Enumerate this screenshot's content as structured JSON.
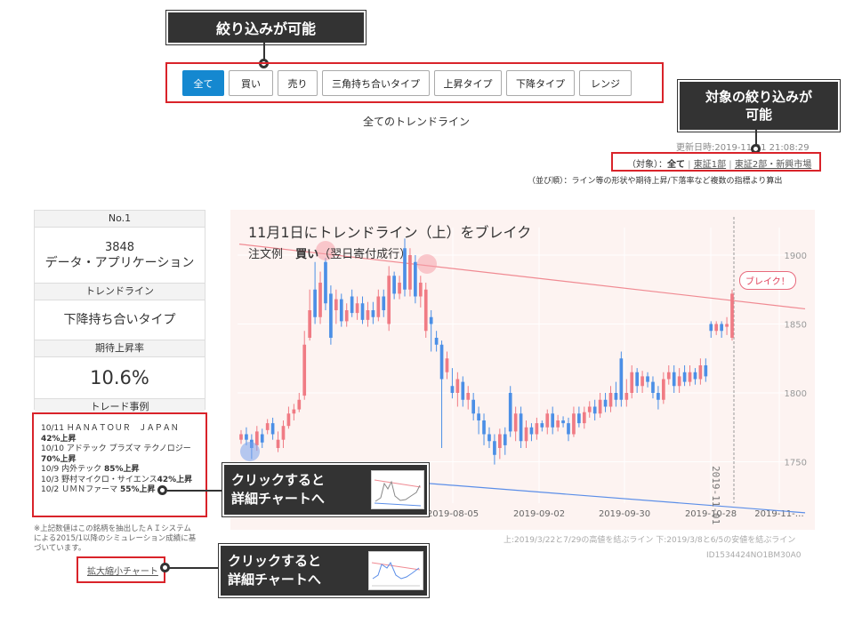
{
  "callouts": {
    "filter": "絞り込みが可能",
    "target": [
      "対象の絞り込みが",
      "可能"
    ],
    "click1": [
      "クリックすると",
      "詳細チャートへ"
    ],
    "click2": [
      "クリックすると",
      "詳細チャートへ"
    ]
  },
  "filters": [
    {
      "label": "全て",
      "active": true
    },
    {
      "label": "買い"
    },
    {
      "label": "売り"
    },
    {
      "label": "三角持ち合いタイプ"
    },
    {
      "label": "上昇タイプ"
    },
    {
      "label": "下降タイプ"
    },
    {
      "label": "レンジ"
    }
  ],
  "section_title": "全てのトレンドライン",
  "updated": "更新日時:2019-11-01 21:08:29",
  "target": {
    "prefix": "（対象）：",
    "all": "全て",
    "sep1": " | ",
    "tse1": "東証1部",
    "sep2": " | ",
    "tse2": "東証2部・新興市場"
  },
  "order_note": "（並び順）：ライン等の形状や期待上昇/下落率など複数の指標より算出",
  "sidebar": {
    "rank": "No.1",
    "code": "3848",
    "name": "データ・アプリケーション",
    "trendline_head": "トレンドライン",
    "trendline_type": "下降持ち合いタイプ",
    "expected_head": "期待上昇率",
    "expected_value": "10.6%",
    "trades_head": "トレード事例",
    "trades": [
      {
        "line": "10/11 ＨＡＮＡＴＯＵＲ　ＪＡＰＡＮ",
        "result": "42%上昇"
      },
      {
        "line": "10/10 アドテック プラズマ テクノロジー",
        "result": "70%上昇"
      },
      {
        "line": "10/9 内外テック",
        "result": "85%上昇"
      },
      {
        "line": "10/3 野村マイクロ・サイエンス",
        "result": "42%上昇"
      },
      {
        "line": "10/2 ＵＭＮファーマ",
        "result": "55%上昇"
      }
    ],
    "note": [
      "※上記数値はこの銘柄を抽出したＡＩシステム",
      "による2015/1以降のシミュレーション成績に基",
      "づいています。"
    ],
    "zoom_link": "拡大縮小チャート"
  },
  "chart_data": {
    "type": "candlestick",
    "title": "11月1日にトレンドライン（上）をブレイク",
    "order_label": "注文例",
    "order_side": "買い",
    "order_type": "（翌日寄付成行）",
    "break_label": "ブレイク！",
    "event_label": "2019-11-01",
    "x_ticks": [
      "2019-08-05",
      "2019-09-02",
      "2019-09-30",
      "2019-10-28",
      "2019-11-…"
    ],
    "y_ticks": [
      1750,
      1800,
      1850,
      1900
    ],
    "ylim": [
      1720,
      1920
    ],
    "upper_line": {
      "start": 1908,
      "end": 1861
    },
    "lower_line": {
      "start": 1745,
      "end": 1713
    },
    "candles": [
      {
        "o": 1766,
        "c": 1770,
        "h": 1773,
        "l": 1763
      },
      {
        "o": 1770,
        "c": 1766,
        "h": 1775,
        "l": 1762
      },
      {
        "o": 1766,
        "c": 1760,
        "h": 1770,
        "l": 1752
      },
      {
        "o": 1762,
        "c": 1772,
        "h": 1776,
        "l": 1758
      },
      {
        "o": 1770,
        "c": 1764,
        "h": 1774,
        "l": 1760
      },
      {
        "o": 1773,
        "c": 1778,
        "h": 1781,
        "l": 1770
      },
      {
        "o": 1778,
        "c": 1770,
        "h": 1782,
        "l": 1766
      },
      {
        "o": 1760,
        "c": 1766,
        "h": 1772,
        "l": 1757
      },
      {
        "o": 1766,
        "c": 1776,
        "h": 1780,
        "l": 1760
      },
      {
        "o": 1776,
        "c": 1785,
        "h": 1790,
        "l": 1774
      },
      {
        "o": 1785,
        "c": 1788,
        "h": 1792,
        "l": 1780
      },
      {
        "o": 1788,
        "c": 1795,
        "h": 1800,
        "l": 1786
      },
      {
        "o": 1798,
        "c": 1835,
        "h": 1845,
        "l": 1795
      },
      {
        "o": 1840,
        "c": 1860,
        "h": 1875,
        "l": 1838
      },
      {
        "o": 1875,
        "c": 1855,
        "h": 1895,
        "l": 1850
      },
      {
        "o": 1855,
        "c": 1880,
        "h": 1888,
        "l": 1850
      },
      {
        "o": 1895,
        "c": 1865,
        "h": 1898,
        "l": 1860
      },
      {
        "o": 1872,
        "c": 1840,
        "h": 1878,
        "l": 1835
      },
      {
        "o": 1860,
        "c": 1868,
        "h": 1875,
        "l": 1850
      },
      {
        "o": 1868,
        "c": 1852,
        "h": 1872,
        "l": 1848
      },
      {
        "o": 1852,
        "c": 1860,
        "h": 1865,
        "l": 1848
      },
      {
        "o": 1870,
        "c": 1858,
        "h": 1875,
        "l": 1855
      },
      {
        "o": 1858,
        "c": 1865,
        "h": 1870,
        "l": 1853
      },
      {
        "o": 1865,
        "c": 1853,
        "h": 1870,
        "l": 1850
      },
      {
        "o": 1853,
        "c": 1860,
        "h": 1866,
        "l": 1848
      },
      {
        "o": 1860,
        "c": 1855,
        "h": 1866,
        "l": 1850
      },
      {
        "o": 1855,
        "c": 1870,
        "h": 1875,
        "l": 1852
      },
      {
        "o": 1870,
        "c": 1860,
        "h": 1875,
        "l": 1855
      },
      {
        "o": 1850,
        "c": 1885,
        "h": 1892,
        "l": 1845
      },
      {
        "o": 1885,
        "c": 1872,
        "h": 1888,
        "l": 1868
      },
      {
        "o": 1872,
        "c": 1880,
        "h": 1885,
        "l": 1868
      },
      {
        "o": 1905,
        "c": 1875,
        "h": 1912,
        "l": 1870
      },
      {
        "o": 1875,
        "c": 1900,
        "h": 1905,
        "l": 1870
      },
      {
        "o": 1895,
        "c": 1870,
        "h": 1900,
        "l": 1865
      },
      {
        "o": 1870,
        "c": 1880,
        "h": 1885,
        "l": 1862
      },
      {
        "o": 1845,
        "c": 1875,
        "h": 1880,
        "l": 1840
      },
      {
        "o": 1855,
        "c": 1850,
        "h": 1860,
        "l": 1830
      },
      {
        "o": 1840,
        "c": 1835,
        "h": 1845,
        "l": 1830
      },
      {
        "o": 1835,
        "c": 1810,
        "h": 1838,
        "l": 1760
      },
      {
        "o": 1815,
        "c": 1825,
        "h": 1830,
        "l": 1810
      },
      {
        "o": 1805,
        "c": 1800,
        "h": 1818,
        "l": 1796
      },
      {
        "o": 1800,
        "c": 1810,
        "h": 1815,
        "l": 1790
      },
      {
        "o": 1808,
        "c": 1795,
        "h": 1812,
        "l": 1790
      },
      {
        "o": 1795,
        "c": 1800,
        "h": 1805,
        "l": 1788
      },
      {
        "o": 1795,
        "c": 1785,
        "h": 1800,
        "l": 1780
      },
      {
        "o": 1785,
        "c": 1780,
        "h": 1790,
        "l": 1770
      },
      {
        "o": 1780,
        "c": 1770,
        "h": 1785,
        "l": 1762
      },
      {
        "o": 1770,
        "c": 1765,
        "h": 1775,
        "l": 1760
      },
      {
        "o": 1765,
        "c": 1755,
        "h": 1770,
        "l": 1748
      },
      {
        "o": 1760,
        "c": 1770,
        "h": 1774,
        "l": 1752
      },
      {
        "o": 1770,
        "c": 1762,
        "h": 1775,
        "l": 1755
      },
      {
        "o": 1800,
        "c": 1772,
        "h": 1805,
        "l": 1768
      },
      {
        "o": 1772,
        "c": 1785,
        "h": 1790,
        "l": 1765
      },
      {
        "o": 1785,
        "c": 1765,
        "h": 1790,
        "l": 1760
      },
      {
        "o": 1765,
        "c": 1775,
        "h": 1780,
        "l": 1760
      },
      {
        "o": 1775,
        "c": 1770,
        "h": 1778,
        "l": 1765
      },
      {
        "o": 1770,
        "c": 1778,
        "h": 1782,
        "l": 1766
      },
      {
        "o": 1778,
        "c": 1775,
        "h": 1780,
        "l": 1772
      },
      {
        "o": 1775,
        "c": 1785,
        "h": 1788,
        "l": 1770
      },
      {
        "o": 1785,
        "c": 1775,
        "h": 1790,
        "l": 1770
      },
      {
        "o": 1775,
        "c": 1780,
        "h": 1784,
        "l": 1772
      },
      {
        "o": 1780,
        "c": 1778,
        "h": 1783,
        "l": 1775
      },
      {
        "o": 1778,
        "c": 1770,
        "h": 1782,
        "l": 1765
      },
      {
        "o": 1770,
        "c": 1785,
        "h": 1790,
        "l": 1768
      },
      {
        "o": 1785,
        "c": 1778,
        "h": 1790,
        "l": 1775
      },
      {
        "o": 1778,
        "c": 1786,
        "h": 1790,
        "l": 1774
      },
      {
        "o": 1786,
        "c": 1790,
        "h": 1794,
        "l": 1782
      },
      {
        "o": 1790,
        "c": 1785,
        "h": 1795,
        "l": 1780
      },
      {
        "o": 1785,
        "c": 1795,
        "h": 1800,
        "l": 1782
      },
      {
        "o": 1795,
        "c": 1790,
        "h": 1800,
        "l": 1786
      },
      {
        "o": 1790,
        "c": 1800,
        "h": 1805,
        "l": 1786
      },
      {
        "o": 1800,
        "c": 1795,
        "h": 1808,
        "l": 1790
      },
      {
        "o": 1825,
        "c": 1795,
        "h": 1830,
        "l": 1790
      },
      {
        "o": 1795,
        "c": 1800,
        "h": 1810,
        "l": 1790
      },
      {
        "o": 1800,
        "c": 1815,
        "h": 1820,
        "l": 1796
      },
      {
        "o": 1815,
        "c": 1805,
        "h": 1818,
        "l": 1800
      },
      {
        "o": 1805,
        "c": 1812,
        "h": 1816,
        "l": 1800
      },
      {
        "o": 1812,
        "c": 1808,
        "h": 1815,
        "l": 1804
      },
      {
        "o": 1808,
        "c": 1800,
        "h": 1812,
        "l": 1796
      },
      {
        "o": 1800,
        "c": 1795,
        "h": 1805,
        "l": 1788
      },
      {
        "o": 1795,
        "c": 1810,
        "h": 1815,
        "l": 1792
      },
      {
        "o": 1810,
        "c": 1815,
        "h": 1820,
        "l": 1806
      },
      {
        "o": 1815,
        "c": 1805,
        "h": 1820,
        "l": 1800
      },
      {
        "o": 1805,
        "c": 1812,
        "h": 1818,
        "l": 1800
      },
      {
        "o": 1815,
        "c": 1808,
        "h": 1820,
        "l": 1805
      },
      {
        "o": 1808,
        "c": 1815,
        "h": 1820,
        "l": 1805
      },
      {
        "o": 1815,
        "c": 1810,
        "h": 1818,
        "l": 1806
      },
      {
        "o": 1810,
        "c": 1820,
        "h": 1825,
        "l": 1806
      },
      {
        "o": 1820,
        "c": 1812,
        "h": 1825,
        "l": 1808
      },
      {
        "o": 1850,
        "c": 1845,
        "h": 1852,
        "l": 1840
      },
      {
        "o": 1845,
        "c": 1850,
        "h": 1852,
        "l": 1842
      },
      {
        "o": 1850,
        "c": 1845,
        "h": 1852,
        "l": 1840
      },
      {
        "o": 1848,
        "c": 1850,
        "h": 1855,
        "l": 1842
      },
      {
        "o": 1840,
        "c": 1872,
        "h": 1875,
        "l": 1838
      }
    ]
  },
  "chart_footer": "上:2019/3/22と7/29の高値を結ぶライン 下:2019/3/8と6/5の安値を結ぶライン",
  "chart_id": "ID1534424NO1BM30A0",
  "colors": {
    "up": "#f07b84",
    "down": "#4b8fe6",
    "upper_line": "#f08a92",
    "lower_line": "#5b8ee8",
    "accent": "#1588d0",
    "callout": "#333333",
    "highlight": "#d9232a"
  }
}
